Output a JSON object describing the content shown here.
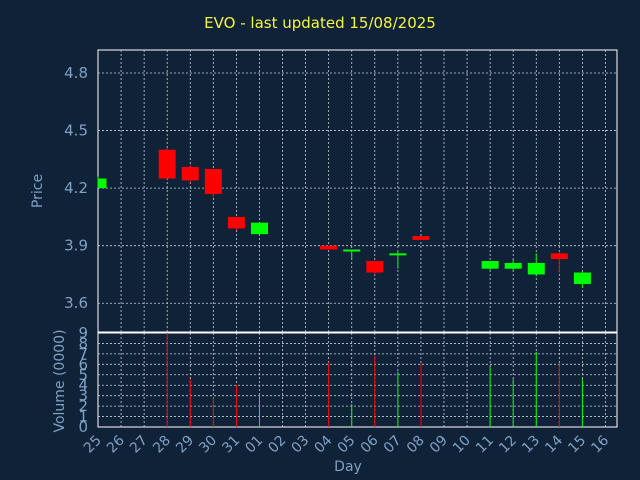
{
  "chart_data": {
    "type": "candlestick",
    "title": "EVO - last updated 15/08/2025",
    "xlabel": "Day",
    "price_ylabel": "Price",
    "volume_ylabel": "Volume (0000)",
    "price_ylim": [
      3.45,
      4.92
    ],
    "price_ticks": [
      "3.6",
      "3.9",
      "4.2",
      "4.5",
      "4.8"
    ],
    "volume_ylim": [
      0,
      9
    ],
    "volume_ticks": [
      "0",
      "1",
      "2",
      "3",
      "4",
      "5",
      "6",
      "7",
      "8",
      "9"
    ],
    "x_ticks": [
      "25",
      "26",
      "27",
      "28",
      "29",
      "30",
      "31",
      "01",
      "02",
      "03",
      "04",
      "05",
      "06",
      "07",
      "08",
      "09",
      "10",
      "11",
      "12",
      "13",
      "14",
      "15",
      "16"
    ],
    "up_color": "#00ff00",
    "down_color": "#ff0000",
    "grid": true,
    "candles": [
      {
        "day": "25",
        "open": 4.2,
        "close": 4.25,
        "high": 4.26,
        "low": 4.2,
        "volume": 0
      },
      {
        "day": "28",
        "open": 4.4,
        "close": 4.25,
        "high": 4.41,
        "low": 4.25,
        "volume": 9.0
      },
      {
        "day": "29",
        "open": 4.31,
        "close": 4.24,
        "high": 4.32,
        "low": 4.23,
        "volume": 4.6
      },
      {
        "day": "30",
        "open": 4.3,
        "close": 4.17,
        "high": 4.3,
        "low": 4.15,
        "volume": 2.8
      },
      {
        "day": "31",
        "open": 4.05,
        "close": 3.99,
        "high": 4.05,
        "low": 3.98,
        "volume": 4.0
      },
      {
        "day": "01",
        "open": 3.96,
        "close": 4.02,
        "high": 4.02,
        "low": 3.96,
        "volume": 3.2
      },
      {
        "day": "04",
        "open": 3.9,
        "close": 3.88,
        "high": 3.9,
        "low": 3.88,
        "volume": 6.2
      },
      {
        "day": "05",
        "open": 3.87,
        "close": 3.88,
        "high": 3.88,
        "low": 3.83,
        "volume": 2.2
      },
      {
        "day": "06",
        "open": 3.82,
        "close": 3.76,
        "high": 3.82,
        "low": 3.75,
        "volume": 6.8
      },
      {
        "day": "07",
        "open": 3.85,
        "close": 3.86,
        "high": 3.87,
        "low": 3.78,
        "volume": 5.3
      },
      {
        "day": "08",
        "open": 3.95,
        "close": 3.93,
        "high": 3.95,
        "low": 3.93,
        "volume": 6.1
      },
      {
        "day": "11",
        "open": 3.78,
        "close": 3.82,
        "high": 3.82,
        "low": 3.77,
        "volume": 5.8
      },
      {
        "day": "12",
        "open": 3.78,
        "close": 3.81,
        "high": 3.83,
        "low": 3.77,
        "volume": 4.6
      },
      {
        "day": "13",
        "open": 3.75,
        "close": 3.81,
        "high": 3.86,
        "low": 3.74,
        "volume": 7.2
      },
      {
        "day": "14",
        "open": 3.86,
        "close": 3.83,
        "high": 3.87,
        "low": 3.76,
        "volume": 6.0
      },
      {
        "day": "15",
        "open": 3.7,
        "close": 3.76,
        "high": 3.77,
        "low": 3.68,
        "volume": 4.6
      }
    ]
  }
}
